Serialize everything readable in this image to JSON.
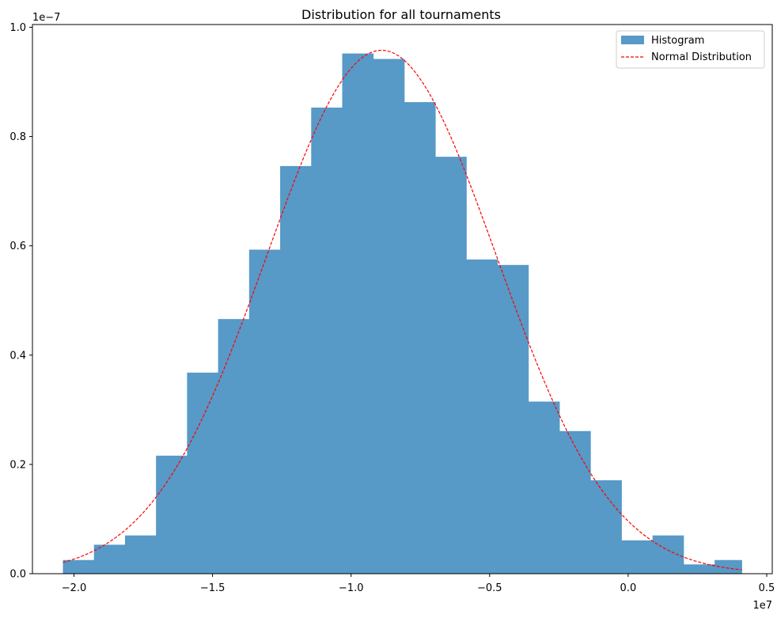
{
  "chart_data": {
    "type": "bar",
    "title": "Distribution for all tournaments",
    "xlabel": "",
    "ylabel": "",
    "x_offset_label": "1e7",
    "y_offset_label": "1e−7",
    "xlim": [
      -2.15,
      0.52
    ],
    "ylim": [
      0,
      1.005
    ],
    "xticks": [
      {
        "value": -2.0,
        "label": "−2.0"
      },
      {
        "value": -1.5,
        "label": "−1.5"
      },
      {
        "value": -1.0,
        "label": "−1.0"
      },
      {
        "value": -0.5,
        "label": "−0.5"
      },
      {
        "value": 0.0,
        "label": "0.0"
      },
      {
        "value": 0.5,
        "label": "0.5"
      }
    ],
    "yticks": [
      {
        "value": 0.0,
        "label": "0.0"
      },
      {
        "value": 0.2,
        "label": "0.2"
      },
      {
        "value": 0.4,
        "label": "0.4"
      },
      {
        "value": 0.6,
        "label": "0.6"
      },
      {
        "value": 0.8,
        "label": "0.8"
      },
      {
        "value": 1.0,
        "label": "1.0"
      }
    ],
    "grid": false,
    "legend_position": "top-right",
    "series": [
      {
        "name": "Histogram",
        "kind": "histogram",
        "color": "#5799c7",
        "bin_edges": [
          -2.04,
          -1.928,
          -1.816,
          -1.704,
          -1.592,
          -1.48,
          -1.368,
          -1.256,
          -1.144,
          -1.032,
          -0.92,
          -0.808,
          -0.696,
          -0.584,
          -0.472,
          -0.36,
          -0.248,
          -0.136,
          -0.024,
          0.088,
          0.2,
          0.312,
          0.41
        ],
        "values": [
          0.025,
          0.053,
          0.07,
          0.216,
          0.368,
          0.466,
          0.593,
          0.746,
          0.853,
          0.952,
          0.942,
          0.863,
          0.763,
          0.575,
          0.565,
          0.315,
          0.261,
          0.171,
          0.061,
          0.07,
          0.017,
          0.025
        ]
      },
      {
        "name": "Normal Distribution",
        "kind": "line",
        "color": "#ff0000",
        "style": "dashed",
        "mean": -0.89,
        "std": 0.415,
        "peak": 0.958,
        "x_range": [
          -2.04,
          0.41
        ]
      }
    ]
  }
}
